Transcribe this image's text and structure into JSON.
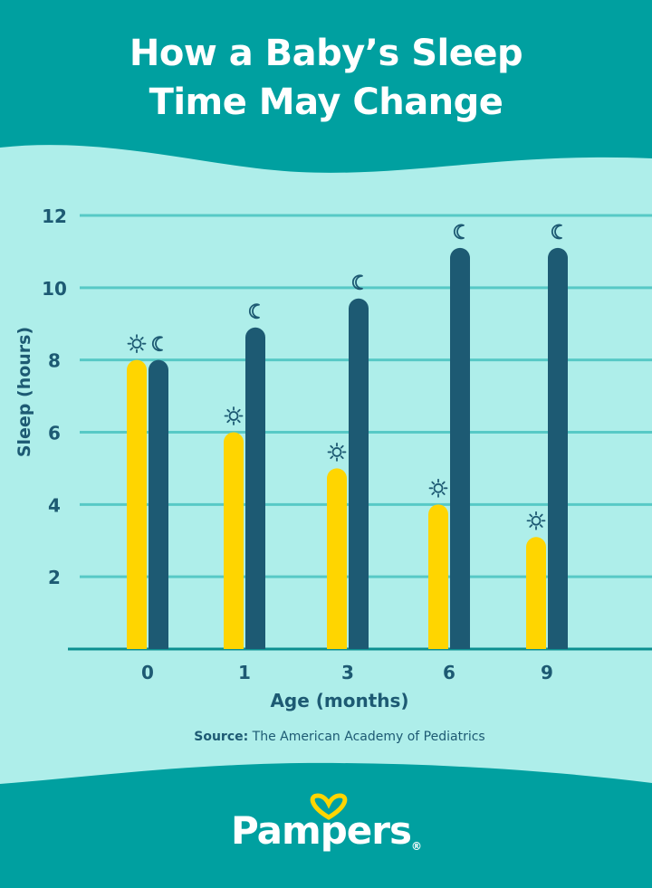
{
  "colors": {
    "header_bg": "#00a0a0",
    "chart_bg": "#aeeeea",
    "day_bar": "#ffd500",
    "night_bar": "#1d5a73",
    "grid": "#57c9c6",
    "text": "#1d5a73",
    "logo_heart": "#ffd500"
  },
  "title": {
    "line1": "How a Baby’s Sleep",
    "line2": "Time May Change"
  },
  "source": {
    "label": "Source:",
    "text": " The American Academy of Pediatrics"
  },
  "brand": {
    "name": "Pampers",
    "mark": "®"
  },
  "icons": {
    "day": "sun-icon",
    "night": "moon-icon"
  },
  "chart_data": {
    "type": "bar",
    "title": "How a Baby’s Sleep Time May Change",
    "xlabel": "Age (months)",
    "ylabel": "Sleep (hours)",
    "categories": [
      "0",
      "1",
      "3",
      "6",
      "9"
    ],
    "series": [
      {
        "name": "Daytime sleep",
        "icon": "sun-icon",
        "values": [
          8,
          6,
          5,
          4,
          3.1
        ]
      },
      {
        "name": "Nighttime sleep",
        "icon": "moon-icon",
        "values": [
          8,
          8.9,
          9.7,
          11.1,
          11.1
        ]
      }
    ],
    "yticks": [
      2,
      4,
      6,
      8,
      10,
      12
    ],
    "ylim": [
      0,
      12
    ],
    "grid": true,
    "legend": "none"
  }
}
